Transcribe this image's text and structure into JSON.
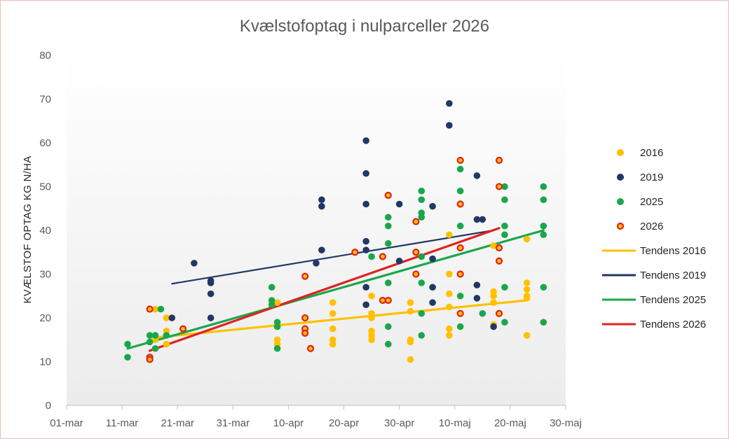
{
  "chart_data": {
    "type": "scatter",
    "title": "Kvælstofoptag  i nulparceller  2026",
    "xlabel": "",
    "ylabel": "KVÆLSTOF OPTAG KG N/HA",
    "xlim": [
      "2026-03-01",
      "2026-05-30"
    ],
    "ylim": [
      0,
      80
    ],
    "x_ticks": [
      "01-mar",
      "11-mar",
      "21-mar",
      "31-mar",
      "10-apr",
      "20-apr",
      "30-apr",
      "10-maj",
      "20-maj",
      "30-maj"
    ],
    "y_ticks": [
      0,
      10,
      20,
      30,
      40,
      50,
      60,
      70,
      80
    ],
    "grid": false,
    "legend_position": "right",
    "series": [
      {
        "name": "2016",
        "color": "#ffc000",
        "marker": "dot",
        "points": [
          [
            "2026-03-17",
            22
          ],
          [
            "2026-03-17",
            15
          ],
          [
            "2026-03-19",
            17
          ],
          [
            "2026-03-19",
            14
          ],
          [
            "2026-03-19",
            20
          ],
          [
            "2026-04-08",
            23.5
          ],
          [
            "2026-04-08",
            18
          ],
          [
            "2026-04-08",
            15
          ],
          [
            "2026-04-08",
            14
          ],
          [
            "2026-04-18",
            23.5
          ],
          [
            "2026-04-18",
            21
          ],
          [
            "2026-04-18",
            17.5
          ],
          [
            "2026-04-18",
            15
          ],
          [
            "2026-04-18",
            14
          ],
          [
            "2026-04-25",
            25
          ],
          [
            "2026-04-25",
            21
          ],
          [
            "2026-04-25",
            20
          ],
          [
            "2026-04-25",
            17
          ],
          [
            "2026-04-25",
            16
          ],
          [
            "2026-04-25",
            15
          ],
          [
            "2026-05-02",
            23.5
          ],
          [
            "2026-05-02",
            21.5
          ],
          [
            "2026-05-02",
            15
          ],
          [
            "2026-05-02",
            14.5
          ],
          [
            "2026-05-02",
            10.5
          ],
          [
            "2026-05-09",
            39
          ],
          [
            "2026-05-09",
            30
          ],
          [
            "2026-05-09",
            25.5
          ],
          [
            "2026-05-09",
            22.5
          ],
          [
            "2026-05-09",
            17.5
          ],
          [
            "2026-05-09",
            16
          ],
          [
            "2026-05-17",
            36.5
          ],
          [
            "2026-05-17",
            26
          ],
          [
            "2026-05-17",
            25
          ],
          [
            "2026-05-17",
            23.5
          ],
          [
            "2026-05-17",
            18.5
          ],
          [
            "2026-05-23",
            38
          ],
          [
            "2026-05-23",
            28
          ],
          [
            "2026-05-23",
            26.5
          ],
          [
            "2026-05-23",
            25
          ],
          [
            "2026-05-23",
            24.5
          ],
          [
            "2026-05-23",
            16
          ]
        ]
      },
      {
        "name": "2019",
        "color": "#203864",
        "marker": "dot",
        "points": [
          [
            "2026-03-20",
            20
          ],
          [
            "2026-03-24",
            32.5
          ],
          [
            "2026-03-27",
            28.5
          ],
          [
            "2026-03-27",
            28
          ],
          [
            "2026-03-27",
            25.5
          ],
          [
            "2026-03-27",
            20
          ],
          [
            "2026-04-15",
            32.5
          ],
          [
            "2026-04-16",
            47
          ],
          [
            "2026-04-16",
            45.5
          ],
          [
            "2026-04-16",
            35.5
          ],
          [
            "2026-04-24",
            60.5
          ],
          [
            "2026-04-24",
            53
          ],
          [
            "2026-04-24",
            46
          ],
          [
            "2026-04-24",
            37.5
          ],
          [
            "2026-04-24",
            35.5
          ],
          [
            "2026-04-24",
            27
          ],
          [
            "2026-04-24",
            23
          ],
          [
            "2026-04-30",
            46
          ],
          [
            "2026-04-30",
            33
          ],
          [
            "2026-05-06",
            45.5
          ],
          [
            "2026-05-06",
            33.5
          ],
          [
            "2026-05-06",
            27
          ],
          [
            "2026-05-06",
            23.5
          ],
          [
            "2026-05-09",
            69
          ],
          [
            "2026-05-09",
            64
          ],
          [
            "2026-05-14",
            52.5
          ],
          [
            "2026-05-14",
            42.5
          ],
          [
            "2026-05-14",
            27.5
          ],
          [
            "2026-05-14",
            24.5
          ],
          [
            "2026-05-15",
            42.5
          ],
          [
            "2026-05-17",
            18
          ]
        ]
      },
      {
        "name": "2025",
        "color": "#1aa64b",
        "marker": "dot",
        "points": [
          [
            "2026-03-12",
            14
          ],
          [
            "2026-03-12",
            11
          ],
          [
            "2026-03-16",
            16
          ],
          [
            "2026-03-16",
            14.5
          ],
          [
            "2026-03-17",
            16
          ],
          [
            "2026-03-17",
            13
          ],
          [
            "2026-03-18",
            22
          ],
          [
            "2026-03-19",
            16
          ],
          [
            "2026-04-07",
            27
          ],
          [
            "2026-04-07",
            24
          ],
          [
            "2026-04-07",
            23
          ],
          [
            "2026-04-08",
            19
          ],
          [
            "2026-04-08",
            18
          ],
          [
            "2026-04-08",
            13
          ],
          [
            "2026-04-25",
            34
          ],
          [
            "2026-04-28",
            43
          ],
          [
            "2026-04-28",
            41
          ],
          [
            "2026-04-28",
            37
          ],
          [
            "2026-04-28",
            28
          ],
          [
            "2026-04-28",
            18
          ],
          [
            "2026-04-28",
            14
          ],
          [
            "2026-05-04",
            49
          ],
          [
            "2026-05-04",
            47
          ],
          [
            "2026-05-04",
            44
          ],
          [
            "2026-05-04",
            43
          ],
          [
            "2026-05-04",
            34
          ],
          [
            "2026-05-04",
            28
          ],
          [
            "2026-05-04",
            21
          ],
          [
            "2026-05-04",
            16
          ],
          [
            "2026-05-11",
            54
          ],
          [
            "2026-05-11",
            49
          ],
          [
            "2026-05-11",
            46
          ],
          [
            "2026-05-11",
            41
          ],
          [
            "2026-05-11",
            25
          ],
          [
            "2026-05-11",
            18
          ],
          [
            "2026-05-15",
            21
          ],
          [
            "2026-05-19",
            50
          ],
          [
            "2026-05-19",
            47
          ],
          [
            "2026-05-19",
            41
          ],
          [
            "2026-05-19",
            39
          ],
          [
            "2026-05-19",
            27
          ],
          [
            "2026-05-19",
            19
          ],
          [
            "2026-05-26",
            50
          ],
          [
            "2026-05-26",
            47
          ],
          [
            "2026-05-26",
            41
          ],
          [
            "2026-05-26",
            39
          ],
          [
            "2026-05-26",
            27
          ],
          [
            "2026-05-26",
            19
          ]
        ]
      },
      {
        "name": "2026",
        "color": "#ffc000",
        "outline": "#e02020",
        "marker": "ring",
        "points": [
          [
            "2026-03-16",
            22
          ],
          [
            "2026-03-16",
            11
          ],
          [
            "2026-03-16",
            10.5
          ],
          [
            "2026-03-22",
            17.5
          ],
          [
            "2026-04-13",
            29.5
          ],
          [
            "2026-04-13",
            20
          ],
          [
            "2026-04-13",
            17.5
          ],
          [
            "2026-04-13",
            16.5
          ],
          [
            "2026-04-14",
            13
          ],
          [
            "2026-04-22",
            35
          ],
          [
            "2026-04-27",
            34
          ],
          [
            "2026-04-27",
            24
          ],
          [
            "2026-04-28",
            24
          ],
          [
            "2026-04-28",
            48
          ],
          [
            "2026-05-03",
            42
          ],
          [
            "2026-05-03",
            35
          ],
          [
            "2026-05-03",
            30
          ],
          [
            "2026-05-11",
            56
          ],
          [
            "2026-05-11",
            46
          ],
          [
            "2026-05-11",
            36
          ],
          [
            "2026-05-11",
            30
          ],
          [
            "2026-05-11",
            21
          ],
          [
            "2026-05-18",
            56
          ],
          [
            "2026-05-18",
            50
          ],
          [
            "2026-05-18",
            36
          ],
          [
            "2026-05-18",
            33
          ],
          [
            "2026-05-18",
            21
          ]
        ]
      }
    ],
    "trendlines": [
      {
        "name": "Tendens 2016",
        "color": "#ffc000",
        "x": [
          "2026-03-17",
          "2026-05-23"
        ],
        "y": [
          15.5,
          24
        ]
      },
      {
        "name": "Tendens 2019",
        "color": "#203864",
        "x": [
          "2026-03-20",
          "2026-05-17"
        ],
        "y": [
          27.8,
          40
        ]
      },
      {
        "name": "Tendens 2025",
        "color": "#1aa64b",
        "x": [
          "2026-03-12",
          "2026-05-26"
        ],
        "y": [
          13,
          40
        ]
      },
      {
        "name": "Tendens 2026",
        "color": "#e02020",
        "x": [
          "2026-03-16",
          "2026-05-18"
        ],
        "y": [
          12.5,
          40.5
        ]
      }
    ],
    "legend": [
      "2016",
      "2019",
      "2025",
      "2026",
      "Tendens 2016",
      "Tendens 2019",
      "Tendens 2025",
      "Tendens 2026"
    ]
  }
}
